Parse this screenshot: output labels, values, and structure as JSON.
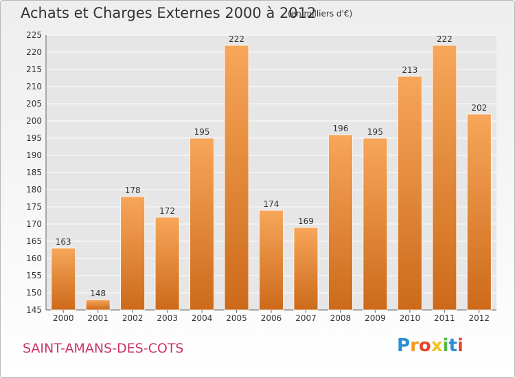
{
  "header": {
    "title": "Achats et Charges Externes 2000 à 2012",
    "subtitle": "(en milliers d'€)"
  },
  "footer": {
    "town": "SAINT-AMANS-DES-COTS",
    "logo": "Proxiti"
  },
  "colors": {
    "bar_top": "#f7a65a",
    "bar_bottom": "#cc6a1a",
    "town": "#cc3366",
    "grid": "#ffffff",
    "plot_bg": "#e6e6e6"
  },
  "chart_data": {
    "type": "bar",
    "categories": [
      "2000",
      "2001",
      "2002",
      "2003",
      "2004",
      "2005",
      "2006",
      "2007",
      "2008",
      "2009",
      "2010",
      "2011",
      "2012"
    ],
    "values": [
      163,
      148,
      178,
      172,
      195,
      222,
      174,
      169,
      196,
      195,
      213,
      222,
      202
    ],
    "title": "Achats et Charges Externes 2000 à 2012",
    "xlabel": "",
    "ylabel": "",
    "ylim": [
      145,
      225
    ],
    "yticks": [
      145,
      150,
      155,
      160,
      165,
      170,
      175,
      180,
      185,
      190,
      195,
      200,
      205,
      210,
      215,
      220,
      225
    ],
    "grid": true,
    "data_labels": true
  }
}
